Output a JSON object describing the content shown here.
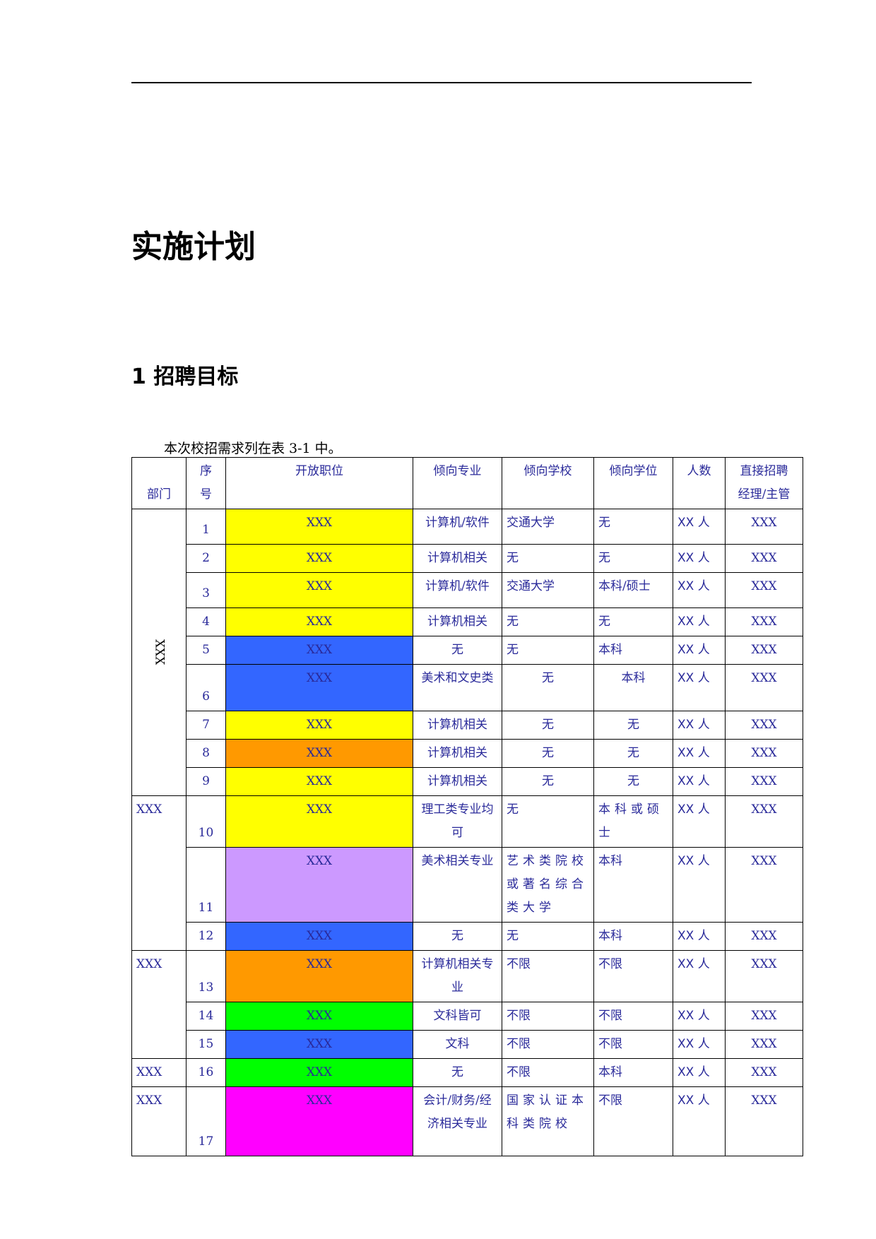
{
  "title": "实施计划",
  "section": {
    "number": "1",
    "title": "招聘目标"
  },
  "intro": "本次校招需求列在表 3-1 中。",
  "table": {
    "headers": {
      "dept": "部门",
      "index_top": "序",
      "index_bottom": "号",
      "position": "开放职位",
      "major": "倾向专业",
      "school": "倾向学校",
      "degree": "倾向学位",
      "count": "人数",
      "manager_line1": "直接招聘",
      "manager_line2": "经理/主管"
    },
    "groups": [
      {
        "dept": "XXX"
      },
      {
        "dept": "XXX"
      },
      {
        "dept": "XXX"
      },
      {
        "dept": "XXX"
      },
      {
        "dept": "XXX"
      }
    ],
    "rows": [
      {
        "index": "1",
        "position": "XXX",
        "color": "#ffff00",
        "major": "计算机/软件",
        "school": "交通大学",
        "degree": "无",
        "count": "XX 人",
        "manager": "XXX"
      },
      {
        "index": "2",
        "position": "XXX",
        "color": "#ffff00",
        "major": "计算机相关",
        "school": "无",
        "degree": "无",
        "count": "XX 人",
        "manager": "XXX"
      },
      {
        "index": "3",
        "position": "XXX",
        "color": "#ffff00",
        "major": "计算机/软件",
        "school": "交通大学",
        "degree": "本科/硕士",
        "count": "XX 人",
        "manager": "XXX"
      },
      {
        "index": "4",
        "position": "XXX",
        "color": "#ffff00",
        "major": "计算机相关",
        "school": "无",
        "degree": "无",
        "count": "XX 人",
        "manager": "XXX"
      },
      {
        "index": "5",
        "position": "XXX",
        "color": "#3366ff",
        "major": "无",
        "school": "无",
        "degree": "本科",
        "count": "XX 人",
        "manager": "XXX"
      },
      {
        "index": "6",
        "position": "XXX",
        "color": "#3366ff",
        "major": "美术和文史类",
        "school": "无",
        "degree": "本科",
        "count": "XX 人",
        "manager": "XXX"
      },
      {
        "index": "7",
        "position": "XXX",
        "color": "#ffff00",
        "major": "计算机相关",
        "school": "无",
        "degree": "无",
        "count": "XX 人",
        "manager": "XXX"
      },
      {
        "index": "8",
        "position": "XXX",
        "color": "#ff9900",
        "major": "计算机相关",
        "school": "无",
        "degree": "无",
        "count": "XX 人",
        "manager": "XXX"
      },
      {
        "index": "9",
        "position": "XXX",
        "color": "#ffff00",
        "major": "计算机相关",
        "school": "无",
        "degree": "无",
        "count": "XX 人",
        "manager": "XXX"
      },
      {
        "index": "10",
        "position": "XXX",
        "color": "#ffff00",
        "major": "理工类专业均可",
        "school": "无",
        "degree": "本科或硕士",
        "count": "XX 人",
        "manager": "XXX"
      },
      {
        "index": "11",
        "position": "XXX",
        "color": "#cc99ff",
        "major": "美术相关专业",
        "school": "艺术类院校或著名综合类大学",
        "degree": "本科",
        "count": "XX 人",
        "manager": "XXX"
      },
      {
        "index": "12",
        "position": "XXX",
        "color": "#3366ff",
        "major": "无",
        "school": "无",
        "degree": "本科",
        "count": "XX 人",
        "manager": "XXX"
      },
      {
        "index": "13",
        "position": "XXX",
        "color": "#ff9900",
        "major": "计算机相关专业",
        "school": "不限",
        "degree": "不限",
        "count": "XX 人",
        "manager": "XXX"
      },
      {
        "index": "14",
        "position": "XXX",
        "color": "#00ff00",
        "major": "文科皆可",
        "school": "不限",
        "degree": "不限",
        "count": "XX 人",
        "manager": "XXX"
      },
      {
        "index": "15",
        "position": "XXX",
        "color": "#3366ff",
        "major": "文科",
        "school": "不限",
        "degree": "不限",
        "count": "XX 人",
        "manager": "XXX"
      },
      {
        "index": "16",
        "position": "XXX",
        "color": "#00ff00",
        "major": "无",
        "school": "不限",
        "degree": "本科",
        "count": "XX 人",
        "manager": "XXX"
      },
      {
        "index": "17",
        "position": "XXX",
        "color": "#ff00ff",
        "major": "会计/财务/经济相关专业",
        "school": "国家认证本科类院校",
        "degree": "不限",
        "count": "XX 人",
        "manager": "XXX"
      }
    ]
  }
}
